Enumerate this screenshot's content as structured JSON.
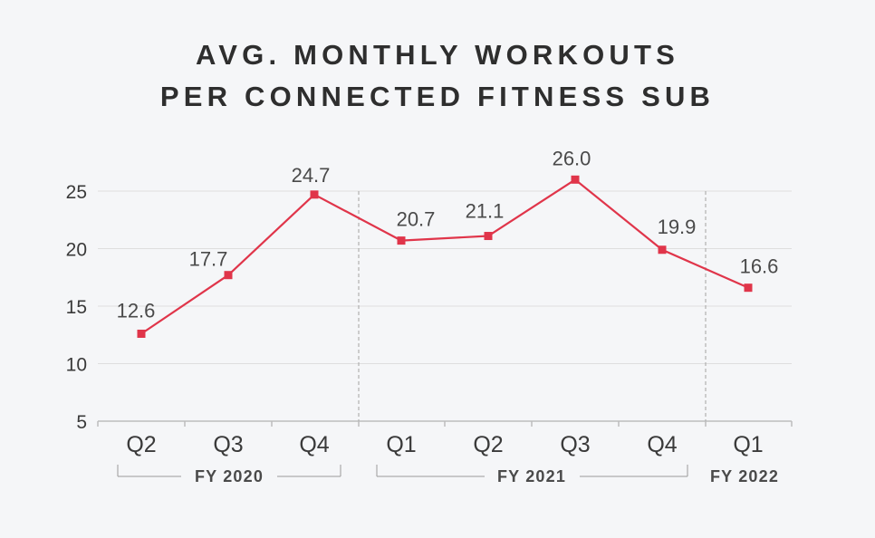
{
  "title": {
    "line1": "AVG. MONTHLY WORKOUTS",
    "line2": "PER CONNECTED FITNESS SUB"
  },
  "colors": {
    "line": "#e0354a",
    "grid": "#dedede",
    "axis": "#bdbdbd",
    "divider": "#b0b0b0",
    "bracket": "#9a9a9a"
  },
  "chart_data": {
    "type": "line",
    "title": "AVG. MONTHLY WORKOUTS PER CONNECTED FITNESS SUB",
    "categories": [
      "Q2",
      "Q3",
      "Q4",
      "Q1",
      "Q2",
      "Q3",
      "Q4",
      "Q1"
    ],
    "series": [
      {
        "values": [
          12.6,
          17.7,
          24.7,
          20.7,
          21.1,
          26.0,
          19.9,
          16.6
        ]
      }
    ],
    "data_labels": [
      "12.6",
      "17.7",
      "24.7",
      "20.7",
      "21.1",
      "26.0",
      "19.9",
      "16.6"
    ],
    "y_ticks": [
      "25",
      "20",
      "15",
      "10",
      "5"
    ],
    "ylim": [
      5,
      25
    ],
    "groups": [
      {
        "label": "FY 2020",
        "start": 0,
        "end": 2
      },
      {
        "label": "FY 2021",
        "start": 3,
        "end": 6
      },
      {
        "label": "FY 2022",
        "start": 7,
        "end": 7
      }
    ],
    "grid": true
  }
}
